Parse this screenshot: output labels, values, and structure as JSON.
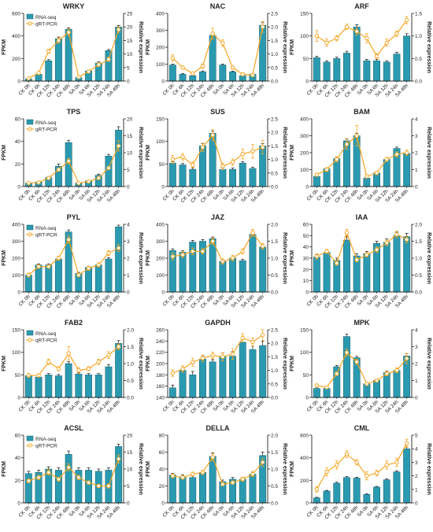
{
  "legend": {
    "rna": "RNA-seq",
    "qpcr": "qRT-PCR"
  },
  "colors": {
    "bar": "#2a9ab0",
    "bar_edge": "#1b5f6d",
    "line": "#f5a623",
    "axis": "#222222"
  },
  "axis_titles": {
    "left": "FPKM",
    "right": "Relative expression"
  },
  "chart_data": [
    {
      "type": "bar+line",
      "title": "WRKY",
      "legend": true,
      "categories": [
        "CK 0h",
        "CK 6h",
        "CK 12h",
        "CK 24h",
        "CK 48h",
        "SA 0h",
        "SA 6h",
        "SA 12h",
        "SA 24h",
        "SA 48h"
      ],
      "ylim": [
        0,
        600
      ],
      "yticks": [
        0,
        200,
        400,
        600
      ],
      "y2lim": [
        0,
        25
      ],
      "y2ticks": [
        0,
        5,
        10,
        15,
        20,
        25
      ],
      "fpkm": [
        20,
        60,
        180,
        375,
        460,
        30,
        90,
        160,
        270,
        480
      ],
      "fpkm_err": [
        5,
        8,
        10,
        15,
        12,
        5,
        8,
        10,
        10,
        12
      ],
      "rel": [
        1.0,
        3.0,
        11.0,
        15.0,
        18.0,
        1.5,
        3.5,
        6.0,
        8.0,
        19.0
      ],
      "rel_err": [
        0.3,
        0.5,
        0.8,
        1.0,
        1.2,
        0.3,
        0.5,
        0.6,
        0.8,
        1.0
      ]
    },
    {
      "type": "bar+line",
      "title": "NAC",
      "categories": [
        "CK 0h",
        "CK 6h",
        "CK 12h",
        "CK 24h",
        "CK 48h",
        "SA 0h",
        "SA 6h",
        "SA 12h",
        "SA 24h",
        "SA 48h"
      ],
      "ylim": [
        0,
        400
      ],
      "yticks": [
        0,
        100,
        200,
        300,
        400
      ],
      "y2lim": [
        0,
        2.5
      ],
      "y2ticks": [
        0.0,
        0.5,
        1.0,
        1.5,
        2.0,
        2.5
      ],
      "fpkm": [
        95,
        40,
        32,
        55,
        270,
        95,
        55,
        32,
        40,
        330
      ],
      "fpkm_err": [
        5,
        4,
        3,
        5,
        12,
        5,
        4,
        3,
        4,
        15
      ],
      "rel": [
        0.85,
        0.5,
        0.28,
        0.55,
        1.75,
        1.4,
        0.5,
        0.25,
        0.22,
        2.0
      ],
      "rel_err": [
        0.12,
        0.06,
        0.05,
        0.08,
        0.2,
        0.12,
        0.06,
        0.05,
        0.05,
        0.2
      ]
    },
    {
      "type": "bar+line",
      "title": "ARF",
      "categories": [
        "CK 0h",
        "CK 6h",
        "CK 12h",
        "CK 24h",
        "CK 48h",
        "SA 0h",
        "SA 6h",
        "SA 12h",
        "SA 24h",
        "SA 48h"
      ],
      "ylim": [
        0,
        150
      ],
      "yticks": [
        0,
        50,
        100,
        150
      ],
      "y2lim": [
        0,
        1.5
      ],
      "y2ticks": [
        0.0,
        0.5,
        1.0,
        1.5
      ],
      "fpkm": [
        52,
        42,
        50,
        62,
        120,
        45,
        45,
        42,
        60,
        100
      ],
      "fpkm_err": [
        3,
        3,
        3,
        4,
        5,
        3,
        3,
        3,
        4,
        5
      ],
      "rel": [
        1.0,
        0.85,
        0.95,
        1.2,
        1.1,
        0.95,
        0.55,
        0.85,
        1.05,
        1.35
      ],
      "rel_err": [
        0.12,
        0.08,
        0.06,
        0.06,
        0.08,
        0.1,
        0.06,
        0.08,
        0.06,
        0.08
      ]
    },
    {
      "type": "bar+line",
      "title": "TPS",
      "legend": true,
      "categories": [
        "CK 0h",
        "CK 6h",
        "CK 12h",
        "CK 24h",
        "CK 48h",
        "SA 0h",
        "SA 6h",
        "SA 12h",
        "SA 24h",
        "SA 48h"
      ],
      "ylim": [
        0,
        60
      ],
      "yticks": [
        0,
        20,
        40,
        60
      ],
      "y2lim": [
        0,
        20
      ],
      "y2ticks": [
        0,
        5,
        10,
        15,
        20
      ],
      "fpkm": [
        3,
        4,
        8,
        18,
        39,
        3,
        5,
        10,
        27,
        50
      ],
      "fpkm_err": [
        0.5,
        0.5,
        1,
        2,
        2,
        0.5,
        0.5,
        1,
        1.5,
        3
      ],
      "rel": [
        1.0,
        1.2,
        2.5,
        5.0,
        7.5,
        1.0,
        1.5,
        2.5,
        5.5,
        12.0
      ],
      "rel_err": [
        0.2,
        0.2,
        0.3,
        0.5,
        0.8,
        0.2,
        0.2,
        0.3,
        0.5,
        1.5
      ]
    },
    {
      "type": "bar+line",
      "title": "SUS",
      "categories": [
        "CK 0h",
        "CK 6h",
        "CK 12h",
        "CK 24h",
        "CK 48h",
        "SA 0h",
        "SA 6h",
        "SA 12h",
        "SA 24h",
        "SA 48h"
      ],
      "ylim": [
        0,
        150
      ],
      "yticks": [
        0,
        50,
        100,
        150
      ],
      "y2lim": [
        0,
        2.5
      ],
      "y2ticks": [
        0.0,
        0.5,
        1.0,
        1.5,
        2.0,
        2.5
      ],
      "fpkm": [
        52,
        48,
        38,
        90,
        118,
        38,
        38,
        52,
        40,
        90
      ],
      "fpkm_err": [
        3,
        3,
        3,
        5,
        5,
        3,
        3,
        3,
        3,
        5
      ],
      "rel": [
        1.0,
        1.1,
        0.8,
        1.45,
        1.9,
        0.75,
        0.9,
        1.2,
        1.3,
        1.45
      ],
      "rel_err": [
        0.15,
        0.12,
        0.1,
        0.15,
        0.2,
        0.12,
        0.12,
        0.18,
        0.25,
        0.25
      ]
    },
    {
      "type": "bar+line",
      "title": "BAM",
      "categories": [
        "CK 0h",
        "CK 6h",
        "CK 12h",
        "CK 24h",
        "CK 48h",
        "SA 0h",
        "SA 6h",
        "SA 12h",
        "SA 24h",
        "SA 48h"
      ],
      "ylim": [
        0,
        400
      ],
      "yticks": [
        0,
        100,
        200,
        300,
        400
      ],
      "y2lim": [
        0,
        4
      ],
      "y2ticks": [
        0,
        1,
        2,
        3,
        4
      ],
      "fpkm": [
        60,
        105,
        165,
        270,
        300,
        50,
        80,
        160,
        225,
        195
      ],
      "fpkm_err": [
        5,
        6,
        8,
        12,
        15,
        5,
        6,
        6,
        8,
        8
      ],
      "rel": [
        0.7,
        1.0,
        1.6,
        2.5,
        3.0,
        0.6,
        0.8,
        1.6,
        1.9,
        2.0
      ],
      "rel_err": [
        0.1,
        0.12,
        0.15,
        0.3,
        0.6,
        0.1,
        0.1,
        0.12,
        0.15,
        0.15
      ]
    },
    {
      "type": "bar+line",
      "title": "PYL",
      "legend": true,
      "categories": [
        "CK 0h",
        "CK 6h",
        "CK 12h",
        "CK 24h",
        "CK 48h",
        "SA 0h",
        "SA 6h",
        "SA 12h",
        "SA 24h",
        "SA 48h"
      ],
      "ylim": [
        0,
        400
      ],
      "yticks": [
        0,
        100,
        200,
        300,
        400
      ],
      "y2lim": [
        0,
        4
      ],
      "y2ticks": [
        0,
        1,
        2,
        3,
        4
      ],
      "fpkm": [
        100,
        160,
        160,
        195,
        355,
        110,
        145,
        160,
        195,
        385
      ],
      "fpkm_err": [
        5,
        6,
        6,
        6,
        12,
        6,
        6,
        6,
        8,
        10
      ],
      "rel": [
        1.0,
        1.5,
        1.5,
        2.0,
        3.1,
        1.0,
        1.4,
        1.6,
        2.3,
        2.6
      ],
      "rel_err": [
        0.12,
        0.1,
        0.1,
        0.12,
        0.2,
        0.1,
        0.12,
        0.12,
        0.15,
        0.2
      ]
    },
    {
      "type": "bar+line",
      "title": "JAZ",
      "categories": [
        "CK 0h",
        "CK 6h",
        "CK 12h",
        "CK 24h",
        "CK 48h",
        "SA 0h",
        "SA 6h",
        "SA 12h",
        "SA 24h",
        "SA 48h"
      ],
      "ylim": [
        0,
        400
      ],
      "yticks": [
        0,
        100,
        200,
        300,
        400
      ],
      "y2lim": [
        0,
        2.0
      ],
      "y2ticks": [
        0.0,
        0.5,
        1.0,
        1.5,
        2.0
      ],
      "fpkm": [
        245,
        235,
        295,
        300,
        315,
        180,
        200,
        185,
        340,
        265
      ],
      "fpkm_err": [
        10,
        8,
        10,
        10,
        10,
        8,
        8,
        8,
        12,
        10
      ],
      "rel": [
        1.05,
        1.1,
        1.2,
        1.2,
        1.5,
        0.9,
        1.0,
        1.2,
        1.75,
        1.35
      ],
      "rel_err": [
        0.1,
        0.08,
        0.1,
        0.08,
        0.1,
        0.08,
        0.08,
        0.08,
        0.1,
        0.08
      ]
    },
    {
      "type": "bar+line",
      "title": "IAA",
      "categories": [
        "CK 0h",
        "CK 6h",
        "CK 12h",
        "CK 24h",
        "CK 48h",
        "SA 0h",
        "SA 6h",
        "SA 12h",
        "SA 24h",
        "SA 48h"
      ],
      "ylim": [
        0,
        60
      ],
      "yticks": [
        0,
        10,
        20,
        30,
        40,
        50,
        60
      ],
      "y2lim": [
        0,
        2.0
      ],
      "y2ticks": [
        0.0,
        0.5,
        1.0,
        1.5,
        2.0
      ],
      "fpkm": [
        31,
        35,
        28,
        46,
        32,
        34,
        43,
        44,
        50,
        49
      ],
      "fpkm_err": [
        2,
        2,
        2,
        3,
        2,
        2,
        2,
        3,
        3,
        3
      ],
      "rel": [
        1.05,
        1.2,
        0.85,
        1.75,
        0.95,
        1.1,
        1.25,
        1.45,
        1.7,
        1.55
      ],
      "rel_err": [
        0.08,
        0.06,
        0.06,
        0.1,
        0.06,
        0.06,
        0.08,
        0.08,
        0.1,
        0.1
      ]
    },
    {
      "type": "bar+line",
      "title": "FAB2",
      "legend": true,
      "categories": [
        "CK 0h",
        "CK 6h",
        "CK 12h",
        "CK 24h",
        "CK 48h",
        "SA 0h",
        "SA 6h",
        "SA 12h",
        "SA 24h",
        "SA 48h"
      ],
      "ylim": [
        0,
        150
      ],
      "yticks": [
        0,
        50,
        100,
        150
      ],
      "y2lim": [
        0,
        2.0
      ],
      "y2ticks": [
        0.0,
        0.5,
        1.0,
        1.5,
        2.0
      ],
      "fpkm": [
        48,
        45,
        50,
        48,
        75,
        52,
        50,
        50,
        68,
        120
      ],
      "fpkm_err": [
        3,
        3,
        3,
        3,
        4,
        3,
        3,
        3,
        5,
        6
      ],
      "rel": [
        0.65,
        0.65,
        1.05,
        0.85,
        1.3,
        0.8,
        0.85,
        1.05,
        1.25,
        1.5
      ],
      "rel_err": [
        0.06,
        0.05,
        0.08,
        0.06,
        0.2,
        0.08,
        0.06,
        0.08,
        0.1,
        0.08
      ]
    },
    {
      "type": "bar+line",
      "title": "GAPDH",
      "categories": [
        "CK 0h",
        "CK 6h",
        "CK 12h",
        "CK 24h",
        "CK 48h",
        "SA 0h",
        "SA 6h",
        "SA 12h",
        "SA 24h",
        "SA 48h"
      ],
      "ylim": [
        140,
        260
      ],
      "yticks": [
        140,
        160,
        180,
        200,
        220,
        240,
        260
      ],
      "y2lim": [
        0,
        2.5
      ],
      "y2ticks": [
        0.0,
        0.5,
        1.0,
        1.5,
        2.0,
        2.5
      ],
      "fpkm": [
        157,
        188,
        180,
        208,
        203,
        213,
        213,
        238,
        225,
        232
      ],
      "fpkm_err": [
        5,
        5,
        6,
        5,
        4,
        6,
        8,
        6,
        6,
        8
      ],
      "rel": [
        0.9,
        1.05,
        1.3,
        1.45,
        1.55,
        1.5,
        1.6,
        2.2,
        2.05,
        2.3
      ],
      "rel_err": [
        0.12,
        0.12,
        0.15,
        0.12,
        0.12,
        0.15,
        0.2,
        0.15,
        0.15,
        0.2
      ]
    },
    {
      "type": "bar+line",
      "title": "MPK",
      "categories": [
        "CK 0h",
        "CK 6h",
        "CK 12h",
        "CK 24h",
        "CK 48h",
        "SA 0h",
        "SA 6h",
        "SA 12h",
        "SA 24h",
        "SA 48h"
      ],
      "ylim": [
        0,
        150
      ],
      "yticks": [
        0,
        50,
        100,
        150
      ],
      "y2lim": [
        0,
        4
      ],
      "y2ticks": [
        0,
        1,
        2,
        3,
        4
      ],
      "fpkm": [
        20,
        20,
        68,
        135,
        88,
        30,
        38,
        55,
        60,
        92
      ],
      "fpkm_err": [
        2,
        2,
        3,
        5,
        3,
        2,
        2,
        3,
        3,
        5
      ],
      "rel": [
        0.7,
        0.6,
        1.4,
        2.65,
        2.1,
        0.8,
        1.0,
        1.4,
        1.6,
        2.3
      ],
      "rel_err": [
        0.1,
        0.08,
        0.12,
        0.2,
        0.15,
        0.1,
        0.1,
        0.12,
        0.15,
        0.3
      ]
    },
    {
      "type": "bar+line",
      "title": "ACSL",
      "legend": true,
      "categories": [
        "CK 0h",
        "CK 6h",
        "CK 12h",
        "CK 24h",
        "CK 48h",
        "SA 0h",
        "SA 6h",
        "SA 12h",
        "SA 24h",
        "SA 48h"
      ],
      "ylim": [
        0,
        60
      ],
      "yticks": [
        0,
        20,
        40,
        60
      ],
      "y2lim": [
        0,
        20
      ],
      "y2ticks": [
        0,
        5,
        10,
        15,
        20
      ],
      "fpkm": [
        26,
        27,
        30,
        29,
        43,
        29,
        29,
        28,
        29,
        50
      ],
      "fpkm_err": [
        2,
        2,
        2,
        2,
        3,
        2,
        2,
        2,
        2,
        2
      ],
      "rel": [
        6.5,
        7.5,
        9.0,
        7.0,
        10.5,
        7.5,
        6.0,
        5.0,
        5.0,
        13.0
      ],
      "rel_err": [
        0.6,
        0.6,
        0.8,
        0.6,
        1.0,
        0.6,
        0.5,
        0.5,
        0.6,
        1.2
      ]
    },
    {
      "type": "bar+line",
      "title": "DELLA",
      "categories": [
        "CK 0h",
        "CK 6h",
        "CK 12h",
        "CK 24h",
        "CK 48h",
        "SA 0h",
        "SA 6h",
        "SA 12h",
        "SA 24h",
        "SA 48h"
      ],
      "ylim": [
        0,
        80
      ],
      "yticks": [
        0,
        20,
        40,
        60,
        80
      ],
      "y2lim": [
        0,
        2.0
      ],
      "y2ticks": [
        0.0,
        0.5,
        1.0,
        1.5,
        2.0
      ],
      "fpkm": [
        33,
        31,
        30,
        36,
        55,
        25,
        28,
        28,
        34,
        56
      ],
      "fpkm_err": [
        2,
        2,
        2,
        2,
        4,
        2,
        2,
        2,
        2,
        4
      ],
      "rel": [
        0.8,
        0.75,
        0.85,
        0.9,
        1.35,
        0.55,
        0.6,
        0.7,
        0.85,
        1.2
      ],
      "rel_err": [
        0.06,
        0.05,
        0.06,
        0.06,
        0.1,
        0.05,
        0.05,
        0.06,
        0.08,
        0.12
      ]
    },
    {
      "type": "bar+line",
      "title": "CML",
      "categories": [
        "CK 0h",
        "CK 6h",
        "CK 12h",
        "CK 24h",
        "CK 48h",
        "SA 0h",
        "SA 6h",
        "SA 12h",
        "SA 24h",
        "SA 48h"
      ],
      "ylim": [
        0,
        600
      ],
      "yticks": [
        0,
        200,
        400,
        600
      ],
      "y2lim": [
        0,
        5
      ],
      "y2ticks": [
        0,
        1,
        2,
        3,
        4,
        5
      ],
      "fpkm": [
        45,
        105,
        175,
        225,
        220,
        75,
        140,
        205,
        275,
        480
      ],
      "fpkm_err": [
        5,
        6,
        8,
        8,
        8,
        5,
        6,
        8,
        10,
        15
      ],
      "rel": [
        1.0,
        2.3,
        2.8,
        3.6,
        3.0,
        2.0,
        2.2,
        2.8,
        3.0,
        4.4
      ],
      "rel_err": [
        0.2,
        0.3,
        0.3,
        0.25,
        0.2,
        0.3,
        0.2,
        0.3,
        0.3,
        0.3
      ]
    }
  ]
}
